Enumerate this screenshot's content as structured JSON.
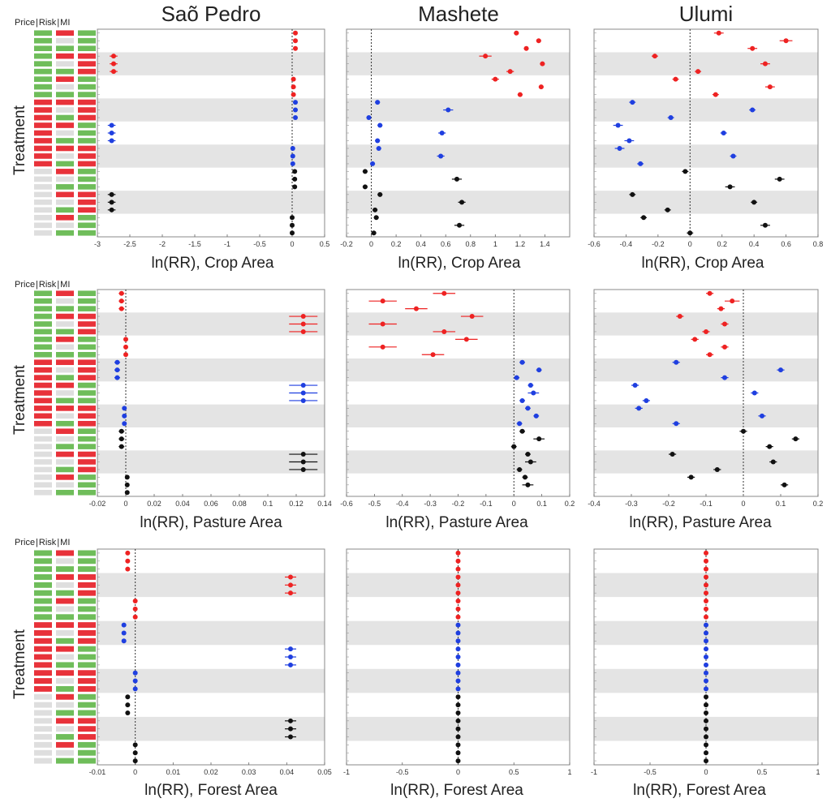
{
  "figure": {
    "column_titles": [
      "Saõ Pedro",
      "Mashete",
      "Ulumi"
    ],
    "y_label": "Treatment",
    "legend_headers": [
      "Price",
      "Risk",
      "MI"
    ],
    "x_labels": [
      "ln(RR), Crop Area",
      "ln(RR), Pasture Area",
      "ln(RR), Forest Area"
    ],
    "colors": {
      "high": "#e8323a",
      "low": "#6fbd5a",
      "off": "#dedede",
      "band": "#e4e4e4",
      "red": "#ee2222",
      "blue": "#1f3fe0",
      "black": "#111111"
    }
  },
  "treatment_matrix": {
    "comment_levels": "0 = grey (none), 1 = green, 2 = red",
    "rows": [
      [
        1,
        2,
        1
      ],
      [
        1,
        0,
        1
      ],
      [
        1,
        1,
        1
      ],
      [
        1,
        2,
        2
      ],
      [
        1,
        0,
        2
      ],
      [
        1,
        1,
        2
      ],
      [
        1,
        2,
        1
      ],
      [
        1,
        0,
        1
      ],
      [
        1,
        1,
        1
      ],
      [
        2,
        2,
        2
      ],
      [
        2,
        0,
        2
      ],
      [
        2,
        1,
        2
      ],
      [
        2,
        2,
        1
      ],
      [
        2,
        0,
        1
      ],
      [
        2,
        1,
        1
      ],
      [
        2,
        2,
        2
      ],
      [
        2,
        0,
        2
      ],
      [
        2,
        1,
        2
      ],
      [
        0,
        2,
        1
      ],
      [
        0,
        0,
        1
      ],
      [
        0,
        1,
        1
      ],
      [
        0,
        2,
        2
      ],
      [
        0,
        0,
        2
      ],
      [
        0,
        1,
        2
      ],
      [
        0,
        2,
        1
      ],
      [
        0,
        0,
        1
      ],
      [
        0,
        1,
        1
      ]
    ]
  },
  "chart_data": [
    {
      "site": "Saõ Pedro",
      "outcome": "Crop Area",
      "type": "scatter",
      "xlim": [
        -3,
        0.5
      ],
      "ticks": [
        "-3",
        "-2.5",
        "-2",
        "-1.5",
        "-1",
        "-0.5",
        "0",
        "0.5"
      ],
      "tick_values": [
        -3,
        -2.5,
        -2,
        -1.5,
        -1,
        -0.5,
        0,
        0.5
      ],
      "values": [
        0.05,
        0.05,
        0.05,
        -2.75,
        -2.75,
        -2.75,
        0.02,
        0.02,
        0.02,
        0.05,
        0.05,
        0.05,
        -2.78,
        -2.78,
        -2.78,
        0.01,
        0.01,
        0.01,
        0.04,
        0.04,
        0.04,
        -2.78,
        -2.78,
        -2.78,
        0.0,
        0.0,
        0.0
      ],
      "errors": [
        0.02,
        0.02,
        0.02,
        0.06,
        0.06,
        0.06,
        0.02,
        0.02,
        0.02,
        0.02,
        0.02,
        0.02,
        0.06,
        0.06,
        0.06,
        0.02,
        0.02,
        0.02,
        0.02,
        0.02,
        0.02,
        0.06,
        0.06,
        0.06,
        0.02,
        0.02,
        0.02
      ]
    },
    {
      "site": "Mashete",
      "outcome": "Crop Area",
      "type": "scatter",
      "xlim": [
        -0.2,
        1.6
      ],
      "ticks": [
        "-0.2",
        "0",
        "0.2",
        "0.4",
        "0.6",
        "0.8",
        "1",
        "1.2",
        "1.4"
      ],
      "tick_values": [
        -0.2,
        0,
        0.2,
        0.4,
        0.6,
        0.8,
        1,
        1.2,
        1.4
      ],
      "values": [
        1.17,
        1.35,
        1.25,
        0.92,
        1.38,
        1.12,
        1.0,
        1.37,
        1.2,
        0.05,
        0.62,
        -0.02,
        0.07,
        0.57,
        0.05,
        0.06,
        0.56,
        0.01,
        -0.05,
        0.69,
        -0.05,
        0.07,
        0.73,
        0.03,
        0.04,
        0.71,
        0.02
      ],
      "errors": [
        0.02,
        0.02,
        0.02,
        0.05,
        0.02,
        0.03,
        0.03,
        0.02,
        0.02,
        0.02,
        0.04,
        0.02,
        0.02,
        0.03,
        0.02,
        0.02,
        0.03,
        0.02,
        0.02,
        0.04,
        0.02,
        0.02,
        0.03,
        0.02,
        0.02,
        0.04,
        0.02
      ]
    },
    {
      "site": "Ulumi",
      "outcome": "Crop Area",
      "type": "scatter",
      "xlim": [
        -0.6,
        0.8
      ],
      "ticks": [
        "-0.6",
        "-0.4",
        "-0.2",
        "0",
        "0.2",
        "0.4",
        "0.6",
        "0.8"
      ],
      "tick_values": [
        -0.6,
        -0.4,
        -0.2,
        0,
        0.2,
        0.4,
        0.6,
        0.8
      ],
      "values": [
        0.18,
        0.6,
        0.39,
        -0.22,
        0.47,
        0.05,
        -0.09,
        0.5,
        0.16,
        -0.36,
        0.39,
        -0.12,
        -0.45,
        0.21,
        -0.38,
        -0.44,
        0.27,
        -0.31,
        -0.03,
        0.56,
        0.25,
        -0.36,
        0.4,
        -0.14,
        -0.29,
        0.47,
        0.0
      ],
      "errors": [
        0.03,
        0.04,
        0.03,
        0.02,
        0.03,
        0.02,
        0.02,
        0.03,
        0.02,
        0.02,
        0.02,
        0.02,
        0.03,
        0.02,
        0.03,
        0.03,
        0.02,
        0.02,
        0.02,
        0.03,
        0.03,
        0.02,
        0.02,
        0.02,
        0.02,
        0.03,
        0.02
      ]
    },
    {
      "site": "Saõ Pedro",
      "outcome": "Pasture Area",
      "type": "scatter",
      "xlim": [
        -0.02,
        0.14
      ],
      "ticks": [
        "-0.02",
        "0",
        "0.02",
        "0.04",
        "0.06",
        "0.08",
        "0.1",
        "0.12",
        "0.14"
      ],
      "tick_values": [
        -0.02,
        0,
        0.02,
        0.04,
        0.06,
        0.08,
        0.1,
        0.12,
        0.14
      ],
      "values": [
        -0.003,
        -0.003,
        -0.003,
        0.125,
        0.125,
        0.125,
        0.0,
        0.0,
        0.0,
        -0.006,
        -0.006,
        -0.006,
        0.125,
        0.125,
        0.125,
        -0.001,
        -0.001,
        -0.001,
        -0.003,
        -0.003,
        -0.003,
        0.125,
        0.125,
        0.125,
        0.001,
        0.001,
        0.001
      ],
      "errors": [
        0.002,
        0.002,
        0.002,
        0.01,
        0.01,
        0.01,
        0.001,
        0.001,
        0.001,
        0.002,
        0.002,
        0.002,
        0.01,
        0.01,
        0.01,
        0.001,
        0.001,
        0.001,
        0.002,
        0.002,
        0.002,
        0.01,
        0.01,
        0.01,
        0.001,
        0.001,
        0.001
      ]
    },
    {
      "site": "Mashete",
      "outcome": "Pasture Area",
      "type": "scatter",
      "xlim": [
        -0.6,
        0.2
      ],
      "ticks": [
        "-0.6",
        "-0.5",
        "-0.4",
        "-0.3",
        "-0.2",
        "-0.1",
        "0",
        "0.1",
        "0.2"
      ],
      "tick_values": [
        -0.6,
        -0.5,
        -0.4,
        -0.3,
        -0.2,
        -0.1,
        0,
        0.1,
        0.2
      ],
      "values": [
        -0.25,
        -0.47,
        -0.35,
        -0.15,
        -0.47,
        -0.25,
        -0.17,
        -0.47,
        -0.29,
        0.03,
        0.09,
        0.01,
        0.06,
        0.07,
        0.03,
        0.05,
        0.08,
        0.02,
        0.03,
        0.09,
        0.0,
        0.05,
        0.06,
        0.02,
        0.04,
        0.05,
        null
      ],
      "errors": [
        0.04,
        0.05,
        0.04,
        0.04,
        0.05,
        0.04,
        0.04,
        0.05,
        0.04,
        0.01,
        0.01,
        0.01,
        0.01,
        0.02,
        0.01,
        0.01,
        0.01,
        0.01,
        0.01,
        0.02,
        0.01,
        0.01,
        0.02,
        0.01,
        0.01,
        0.02,
        0
      ]
    },
    {
      "site": "Ulumi",
      "outcome": "Pasture Area",
      "type": "scatter",
      "xlim": [
        -0.4,
        0.2
      ],
      "ticks": [
        "-0.4",
        "-0.3",
        "-0.2",
        "-0.1",
        "0",
        "0.1",
        "0.2"
      ],
      "tick_values": [
        -0.4,
        -0.3,
        -0.2,
        -0.1,
        0,
        0.1,
        0.2
      ],
      "values": [
        -0.09,
        -0.03,
        -0.06,
        -0.17,
        -0.05,
        -0.1,
        -0.13,
        -0.05,
        -0.09,
        -0.18,
        0.1,
        -0.05,
        -0.29,
        0.03,
        -0.26,
        -0.28,
        0.05,
        -0.18,
        0.0,
        0.14,
        0.07,
        -0.19,
        0.08,
        -0.07,
        -0.14,
        0.11,
        null
      ],
      "errors": [
        0.01,
        0.02,
        0.01,
        0.01,
        0.01,
        0.01,
        0.01,
        0.01,
        0.01,
        0.01,
        0.01,
        0.01,
        0.01,
        0.01,
        0.01,
        0.01,
        0.01,
        0.01,
        0.01,
        0.01,
        0.01,
        0.01,
        0.01,
        0.01,
        0.01,
        0.01,
        0
      ]
    },
    {
      "site": "Saõ Pedro",
      "outcome": "Forest Area",
      "type": "scatter",
      "xlim": [
        -0.01,
        0.05
      ],
      "ticks": [
        "-0.01",
        "0",
        "0.01",
        "0.02",
        "0.03",
        "0.04",
        "0.05"
      ],
      "tick_values": [
        -0.01,
        0,
        0.01,
        0.02,
        0.03,
        0.04,
        0.05
      ],
      "values": [
        -0.002,
        -0.002,
        -0.002,
        0.041,
        0.041,
        0.041,
        0.0,
        0.0,
        0.0,
        -0.003,
        -0.003,
        -0.003,
        0.041,
        0.041,
        0.041,
        0.0,
        0.0,
        0.0,
        -0.002,
        -0.002,
        -0.002,
        0.041,
        0.041,
        0.041,
        0.0,
        0.0,
        0.0
      ],
      "errors": [
        0.0005,
        0.0005,
        0.0005,
        0.0015,
        0.0015,
        0.0015,
        0.0003,
        0.0003,
        0.0003,
        0.0005,
        0.0005,
        0.0005,
        0.0015,
        0.0015,
        0.0015,
        0.0003,
        0.0003,
        0.0003,
        0.0005,
        0.0005,
        0.0005,
        0.0015,
        0.0015,
        0.0015,
        0.0003,
        0.0003,
        0.0003
      ]
    },
    {
      "site": "Mashete",
      "outcome": "Forest Area",
      "type": "scatter",
      "xlim": [
        -1,
        1
      ],
      "ticks": [
        "-1",
        "-0.5",
        "0",
        "0.5",
        "1"
      ],
      "tick_values": [
        -1,
        -0.5,
        0,
        0.5,
        1
      ],
      "values": [
        0,
        0,
        0,
        0,
        0,
        0,
        0,
        0,
        0,
        0,
        0,
        0,
        0,
        0,
        0,
        0,
        0,
        0,
        0,
        0,
        0,
        0,
        0,
        0,
        0,
        0,
        0
      ],
      "errors": [
        0,
        0,
        0,
        0,
        0,
        0,
        0,
        0,
        0,
        0,
        0,
        0,
        0,
        0,
        0,
        0,
        0,
        0,
        0,
        0,
        0,
        0,
        0,
        0,
        0,
        0,
        0
      ]
    },
    {
      "site": "Ulumi",
      "outcome": "Forest Area",
      "type": "scatter",
      "xlim": [
        -1,
        1
      ],
      "ticks": [
        "-1",
        "-0.5",
        "0",
        "0.5",
        "1"
      ],
      "tick_values": [
        -1,
        -0.5,
        0,
        0.5,
        1
      ],
      "values": [
        0,
        0,
        0,
        0,
        0,
        0,
        0,
        0,
        0,
        0,
        0,
        0,
        0,
        0,
        0,
        0,
        0,
        0,
        0,
        0,
        0,
        0,
        0,
        0,
        0,
        0,
        0
      ],
      "errors": [
        0,
        0,
        0,
        0,
        0,
        0,
        0,
        0,
        0,
        0,
        0,
        0,
        0,
        0,
        0,
        0,
        0,
        0,
        0,
        0,
        0,
        0,
        0,
        0,
        0,
        0,
        0
      ]
    }
  ]
}
